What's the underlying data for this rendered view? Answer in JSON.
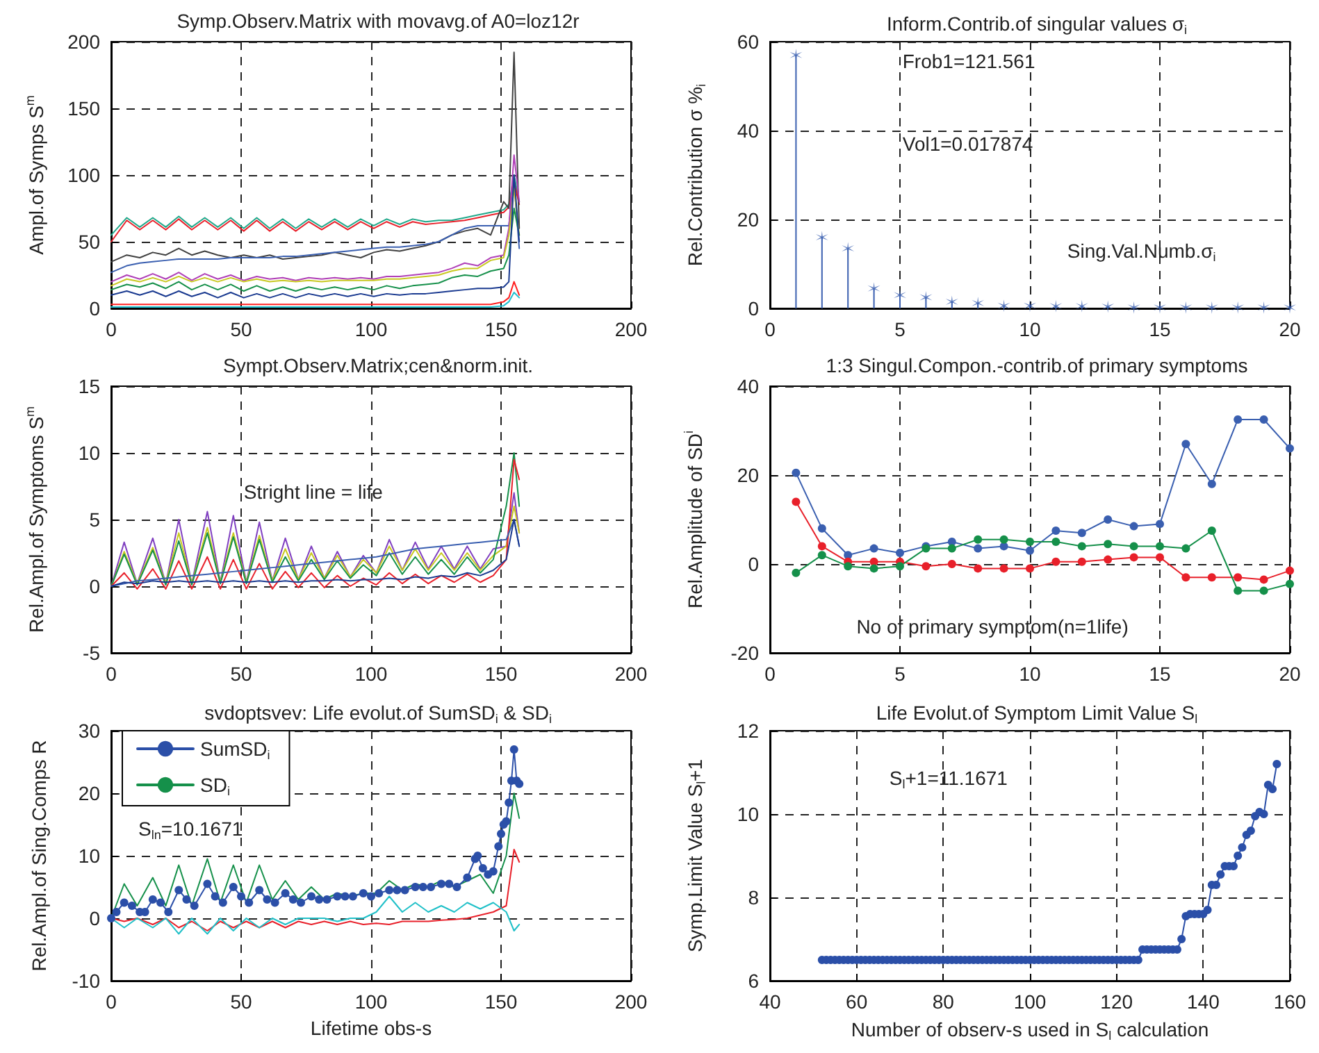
{
  "chart_data": [
    {
      "type": "line",
      "title": "Symp.Observ.Matrix with movavg.of A0=loz12r",
      "ylabel": "Ampl.of Symps S$^{m}$",
      "xlim": [
        0,
        200
      ],
      "xticks": [
        0,
        50,
        100,
        150,
        200
      ],
      "ylim": [
        0,
        200
      ],
      "yticks": [
        0,
        50,
        100,
        150,
        200
      ],
      "grid": true,
      "x": [
        0,
        6,
        11,
        16,
        21,
        26,
        31,
        36,
        41,
        46,
        51,
        56,
        61,
        66,
        71,
        76,
        81,
        86,
        91,
        96,
        101,
        106,
        111,
        116,
        121,
        126,
        131,
        136,
        141,
        146,
        151,
        153,
        155,
        157
      ],
      "series": [
        {
          "color": "#1fa88a",
          "values": [
            55,
            68,
            61,
            68,
            61,
            69,
            61,
            68,
            61,
            68,
            60,
            68,
            60,
            67,
            60,
            67,
            61,
            67,
            61,
            67,
            62,
            67,
            63,
            67,
            65,
            66,
            66,
            68,
            70,
            72,
            74,
            78,
            100,
            80
          ]
        },
        {
          "color": "#e8202a",
          "values": [
            50,
            66,
            59,
            66,
            59,
            67,
            59,
            66,
            59,
            66,
            58,
            66,
            58,
            65,
            58,
            65,
            59,
            65,
            59,
            65,
            60,
            65,
            61,
            65,
            63,
            64,
            65,
            66,
            68,
            70,
            72,
            76,
            95,
            78
          ]
        },
        {
          "color": "#404040",
          "values": [
            35,
            40,
            38,
            42,
            40,
            45,
            40,
            43,
            40,
            38,
            40,
            38,
            40,
            37,
            38,
            39,
            40,
            42,
            40,
            38,
            42,
            44,
            43,
            45,
            47,
            50,
            55,
            58,
            60,
            55,
            80,
            75,
            192,
            60
          ]
        },
        {
          "color": "#3a5fb0",
          "values": [
            27,
            32,
            34,
            35,
            36,
            37,
            37,
            37,
            37,
            38,
            38,
            38,
            38,
            39,
            39,
            40,
            41,
            42,
            43,
            44,
            45,
            46,
            46,
            47,
            48,
            50,
            55,
            60,
            62,
            62,
            62,
            62,
            95,
            45
          ]
        },
        {
          "color": "#b040b8",
          "values": [
            20,
            25,
            22,
            26,
            22,
            27,
            21,
            26,
            22,
            25,
            21,
            24,
            22,
            23,
            21,
            23,
            22,
            23,
            22,
            23,
            22,
            24,
            24,
            25,
            26,
            27,
            30,
            34,
            32,
            38,
            40,
            60,
            115,
            80
          ]
        },
        {
          "color": "#c8c820",
          "values": [
            17,
            22,
            20,
            23,
            20,
            24,
            20,
            23,
            20,
            23,
            20,
            22,
            20,
            21,
            20,
            21,
            20,
            21,
            21,
            21,
            21,
            22,
            22,
            23,
            24,
            25,
            28,
            30,
            30,
            36,
            38,
            55,
            90,
            55
          ]
        },
        {
          "color": "#15904a",
          "values": [
            14,
            18,
            16,
            19,
            15,
            20,
            14,
            18,
            14,
            18,
            13,
            17,
            13,
            16,
            13,
            16,
            14,
            16,
            14,
            16,
            14,
            17,
            15,
            17,
            18,
            19,
            23,
            25,
            24,
            28,
            30,
            40,
            75,
            55
          ]
        },
        {
          "color": "#1a3a90",
          "values": [
            10,
            13,
            10,
            13,
            9,
            13,
            9,
            12,
            8,
            12,
            8,
            11,
            8,
            11,
            8,
            11,
            9,
            11,
            9,
            11,
            9,
            11,
            10,
            11,
            11,
            12,
            13,
            14,
            15,
            15,
            16,
            20,
            100,
            50
          ]
        },
        {
          "color": "#ff2020",
          "values": [
            3,
            3,
            3,
            3,
            3,
            3,
            3,
            3,
            3,
            3,
            3,
            3,
            3,
            3,
            3,
            3,
            3,
            3,
            3,
            3,
            3,
            3,
            3,
            3,
            3,
            3,
            3,
            3,
            3,
            3,
            5,
            8,
            20,
            10
          ]
        },
        {
          "color": "#20c0d0",
          "values": [
            1,
            1,
            1,
            1,
            1,
            1,
            1,
            1,
            1,
            1,
            1,
            1,
            1,
            1,
            1,
            1,
            1,
            1,
            1,
            1,
            1,
            1,
            1,
            1,
            1,
            1,
            1,
            1,
            1,
            1,
            2,
            5,
            12,
            8
          ]
        }
      ]
    },
    {
      "type": "lollipop",
      "title": "Inform.Contrib.of singular values σ$_{i}$",
      "ylabel": "Rel.Contribution σ %$_{i}$",
      "xlim": [
        0,
        20
      ],
      "xticks": [
        0,
        5,
        10,
        15,
        20
      ],
      "ylim": [
        0,
        60
      ],
      "yticks": [
        0,
        20,
        40,
        60
      ],
      "grid": true,
      "marker": "cross",
      "annotations": [
        "Frob1=121.561",
        "Vol1=0.017874",
        "Sing.Val.Numb.σ$_{i}$"
      ],
      "x": [
        1,
        2,
        3,
        4,
        5,
        6,
        7,
        8,
        9,
        10,
        11,
        12,
        13,
        14,
        15,
        16,
        17,
        18,
        19,
        20
      ],
      "series": [
        {
          "color": "#3a5fb0",
          "values": [
            57,
            16,
            13.5,
            4.5,
            3,
            2.5,
            1.5,
            1.2,
            0.6,
            0.6,
            0.5,
            0.5,
            0.4,
            0.2,
            0.2,
            0.2,
            0.2,
            0.2,
            0.2,
            0.2
          ]
        }
      ]
    },
    {
      "type": "line",
      "title": "Sympt.Observ.Matrix;cen&norm.init.",
      "ylabel": "Rel.Ampl.of Symptoms S$^{m}$",
      "xlim": [
        0,
        200
      ],
      "xticks": [
        0,
        50,
        100,
        150,
        200
      ],
      "ylim": [
        -5,
        15
      ],
      "yticks": [
        -5,
        0,
        5,
        10,
        15
      ],
      "grid": true,
      "annotations": [
        "Stright line = life"
      ],
      "x": [
        0,
        5,
        10,
        16,
        21,
        26,
        31,
        37,
        42,
        47,
        52,
        57,
        62,
        67,
        72,
        77,
        82,
        87,
        92,
        97,
        102,
        107,
        112,
        117,
        122,
        127,
        132,
        137,
        142,
        147,
        152,
        155,
        157
      ],
      "series": [
        {
          "color": "#8040c0",
          "values": [
            0,
            3.3,
            0.2,
            3.6,
            0.2,
            5.0,
            0.2,
            5.6,
            0.3,
            5.3,
            0.3,
            4.8,
            0.4,
            3.6,
            0.5,
            3.0,
            0.6,
            2.6,
            0.7,
            2.3,
            1.0,
            3.5,
            1.2,
            3.3,
            1.3,
            3.0,
            1.3,
            3.0,
            1.3,
            2.8,
            3,
            7,
            4
          ]
        },
        {
          "color": "#c8c820",
          "values": [
            0,
            2.6,
            0.2,
            2.9,
            0.2,
            4.0,
            0.2,
            4.4,
            0.3,
            4.0,
            0.3,
            3.8,
            0.4,
            2.8,
            0.5,
            2.5,
            0.6,
            2.3,
            0.7,
            2.0,
            1.0,
            3.0,
            1.2,
            2.8,
            1.2,
            2.5,
            1.2,
            2.5,
            1.2,
            2.3,
            3,
            6,
            4
          ]
        },
        {
          "color": "#15904a",
          "values": [
            0,
            2.4,
            0.1,
            2.7,
            0.1,
            3.4,
            0.1,
            4.0,
            0.2,
            3.7,
            0.2,
            3.5,
            0.3,
            2.2,
            0.4,
            2.0,
            0.5,
            1.9,
            0.6,
            1.6,
            0.8,
            2.5,
            0.9,
            2.2,
            0.9,
            2.0,
            0.9,
            2.2,
            1.0,
            2.0,
            6,
            10,
            6
          ]
        },
        {
          "color": "#e8202a",
          "values": [
            0,
            1.0,
            -0.2,
            1.3,
            -0.2,
            1.9,
            -0.2,
            2.2,
            -0.2,
            2.0,
            -0.2,
            1.7,
            -0.2,
            1.1,
            -0.1,
            1.0,
            -0.1,
            0.8,
            0,
            0.6,
            0.1,
            1.0,
            0.2,
            0.9,
            0.2,
            0.8,
            0.3,
            0.9,
            0.3,
            0.8,
            2,
            9.5,
            8
          ]
        },
        {
          "color": "#3a5fb0",
          "values": [
            0,
            0.2,
            0.4,
            0.5,
            0.6,
            0.7,
            0.8,
            0.9,
            1.0,
            1.1,
            1.2,
            1.3,
            1.4,
            1.5,
            1.6,
            1.7,
            1.8,
            1.9,
            2.0,
            2.1,
            2.2,
            2.4,
            2.6,
            2.8,
            2.9,
            3.0,
            3.1,
            3.2,
            3.3,
            3.4,
            3.5,
            5,
            3
          ]
        },
        {
          "color": "#1a3a90",
          "values": [
            0,
            0.3,
            0.2,
            0.4,
            0.3,
            0.4,
            0.3,
            0.4,
            0.3,
            0.4,
            0.3,
            0.4,
            0.3,
            0.4,
            0.3,
            0.4,
            0.4,
            0.5,
            0.4,
            0.5,
            0.5,
            0.6,
            0.5,
            0.7,
            0.6,
            0.8,
            0.7,
            1.0,
            0.8,
            1.2,
            2,
            5,
            3
          ]
        }
      ]
    },
    {
      "type": "line",
      "title": "1:3 Singul.Compon.-contrib.of primary symptoms",
      "ylabel": "Rel.Amplitude of SD$^{i}$",
      "xlim": [
        0,
        20
      ],
      "xticks": [
        0,
        5,
        10,
        15,
        20
      ],
      "ylim": [
        -20,
        40
      ],
      "yticks": [
        -20,
        0,
        20,
        40
      ],
      "grid": true,
      "marker": "circle",
      "annotations": [
        "No of primary symptom(n=1life)"
      ],
      "x": [
        1,
        2,
        3,
        4,
        5,
        6,
        7,
        8,
        9,
        10,
        11,
        12,
        13,
        14,
        15,
        16,
        17,
        18,
        19,
        20
      ],
      "series": [
        {
          "color": "#3a5fb0",
          "values": [
            20.5,
            8,
            2,
            3.5,
            2.5,
            4,
            5,
            3.5,
            4,
            3,
            7.5,
            7,
            10,
            8.5,
            9,
            27,
            18,
            32.5,
            32.5,
            26
          ]
        },
        {
          "color": "#e8202a",
          "values": [
            14,
            4,
            0.5,
            0.5,
            0.5,
            -0.5,
            0,
            -1,
            -1,
            -1,
            0.5,
            0.5,
            1,
            1.5,
            1.5,
            -3,
            -3,
            -3,
            -3.5,
            -1.5
          ]
        },
        {
          "color": "#15904a",
          "values": [
            -2,
            2,
            -0.5,
            -1,
            -0.5,
            3.5,
            3.5,
            5.5,
            5.5,
            5,
            5,
            4,
            4.5,
            4,
            4,
            3.5,
            7.5,
            -6,
            -6,
            -4.5
          ]
        }
      ]
    },
    {
      "type": "line",
      "title": "svdoptsvev: Life evolut.of SumSD$_{i}$ & SD$_{i}$",
      "xlabel": "Lifetime obs-s",
      "ylabel": "Rel.Ampl.of Sing.Comps R",
      "xlim": [
        0,
        200
      ],
      "xticks": [
        0,
        50,
        100,
        150,
        200
      ],
      "ylim": [
        -10,
        30
      ],
      "yticks": [
        -10,
        0,
        10,
        20,
        30
      ],
      "grid": true,
      "legend": "top left",
      "marker": "none",
      "annotations": [
        "S$_{ln}$=10.1671"
      ],
      "x": [
        0,
        5,
        10,
        16,
        21,
        26,
        31,
        37,
        42,
        47,
        52,
        57,
        62,
        67,
        72,
        77,
        82,
        87,
        92,
        97,
        102,
        107,
        112,
        117,
        122,
        127,
        132,
        137,
        142,
        147,
        152,
        155,
        157
      ],
      "series": [
        {
          "name": "SumSD$_{i}$",
          "color": "#2b4fa8",
          "marker": "circle",
          "x": [
            0,
            2,
            5,
            8,
            11,
            13,
            16,
            19,
            22,
            26,
            29,
            32,
            37,
            40,
            43,
            47,
            50,
            53,
            57,
            60,
            63,
            67,
            70,
            73,
            77,
            80,
            83,
            87,
            90,
            93,
            97,
            100,
            103,
            107,
            110,
            113,
            117,
            120,
            123,
            127,
            130,
            133,
            137,
            140,
            141,
            143,
            145,
            147,
            149,
            150,
            151,
            152,
            153,
            154,
            155,
            156,
            157
          ],
          "values": [
            0,
            1,
            2.5,
            2,
            1,
            1,
            3,
            2.5,
            1,
            4.5,
            3,
            2,
            5.5,
            3.5,
            2.5,
            5,
            3.5,
            2.5,
            4.5,
            3,
            2.5,
            4,
            3,
            2.5,
            3.5,
            3,
            3,
            3.5,
            3.5,
            3.5,
            4,
            3.5,
            4,
            4.5,
            4.5,
            4.5,
            5,
            5,
            5,
            5.5,
            5.5,
            5,
            6.5,
            9.5,
            10,
            8,
            7,
            7.5,
            11.5,
            13.5,
            15,
            15.5,
            18.5,
            22,
            27,
            22,
            21.5
          ]
        },
        {
          "name": "SD$_{i}$",
          "color": "#15904a",
          "values": [
            0,
            5.5,
            2,
            6.5,
            2,
            8.5,
            2,
            9.5,
            2.5,
            8.5,
            2.5,
            8.5,
            3,
            6,
            3,
            5,
            3,
            4,
            3.5,
            4,
            4,
            6,
            4.5,
            5.5,
            5,
            6,
            5,
            6,
            7,
            4,
            10,
            20,
            16
          ]
        },
        {
          "color": "#e8202a",
          "values": [
            0,
            -0.5,
            0,
            -1,
            0,
            -1.5,
            -0.5,
            -2,
            -0.5,
            -1.5,
            -0.5,
            -1.5,
            -0.5,
            -1.5,
            -0.5,
            -1,
            -0.5,
            -1,
            -0.5,
            -1,
            -0.8,
            -1,
            -0.5,
            -0.5,
            -0.5,
            -0.3,
            -0.2,
            0,
            0.5,
            1,
            2,
            11,
            9
          ]
        },
        {
          "color": "#20c0c8",
          "values": [
            0,
            -1.5,
            0,
            -1.5,
            0,
            -2.5,
            0,
            -2.5,
            0,
            -2,
            0,
            -1.5,
            0,
            -1,
            0,
            0,
            0,
            -0.5,
            0,
            0,
            1,
            3.5,
            1,
            2.5,
            1,
            2,
            1,
            2.5,
            1.5,
            2.5,
            1,
            -2,
            -1
          ]
        }
      ]
    },
    {
      "type": "line",
      "title": "Life Evolut.of Symptom Limit Value S$_{l}$",
      "xlabel": "Number of observ-s used in S$_{l}$ calculation",
      "ylabel": "Symp.Limit Value S$_{l}$+1",
      "xlim": [
        40,
        160
      ],
      "xticks": [
        40,
        60,
        80,
        100,
        120,
        140,
        160
      ],
      "ylim": [
        6,
        12
      ],
      "yticks": [
        6,
        8,
        10,
        12
      ],
      "grid": true,
      "marker": "circle",
      "annotations": [
        "S$_{l}$+1=11.1671"
      ],
      "x": [
        52,
        53,
        54,
        55,
        56,
        57,
        58,
        59,
        60,
        61,
        62,
        63,
        64,
        65,
        66,
        67,
        68,
        69,
        70,
        71,
        72,
        73,
        74,
        75,
        76,
        77,
        78,
        79,
        80,
        81,
        82,
        83,
        84,
        85,
        86,
        87,
        88,
        89,
        90,
        91,
        92,
        93,
        94,
        95,
        96,
        97,
        98,
        99,
        100,
        101,
        102,
        103,
        104,
        105,
        106,
        107,
        108,
        109,
        110,
        111,
        112,
        113,
        114,
        115,
        116,
        117,
        118,
        119,
        120,
        121,
        122,
        123,
        124,
        125,
        126,
        127,
        128,
        129,
        130,
        131,
        132,
        133,
        134,
        135,
        136,
        137,
        138,
        139,
        140,
        141,
        142,
        143,
        144,
        145,
        146,
        147,
        148,
        149,
        150,
        151,
        152,
        153,
        154,
        155,
        156,
        157
      ],
      "series": [
        {
          "color": "#2b4fa8",
          "values": [
            6.5,
            6.5,
            6.5,
            6.5,
            6.5,
            6.5,
            6.5,
            6.5,
            6.5,
            6.5,
            6.5,
            6.5,
            6.5,
            6.5,
            6.5,
            6.5,
            6.5,
            6.5,
            6.5,
            6.5,
            6.5,
            6.5,
            6.5,
            6.5,
            6.5,
            6.5,
            6.5,
            6.5,
            6.5,
            6.5,
            6.5,
            6.5,
            6.5,
            6.5,
            6.5,
            6.5,
            6.5,
            6.5,
            6.5,
            6.5,
            6.5,
            6.5,
            6.5,
            6.5,
            6.5,
            6.5,
            6.5,
            6.5,
            6.5,
            6.5,
            6.5,
            6.5,
            6.5,
            6.5,
            6.5,
            6.5,
            6.5,
            6.5,
            6.5,
            6.5,
            6.5,
            6.5,
            6.5,
            6.5,
            6.5,
            6.5,
            6.5,
            6.5,
            6.5,
            6.5,
            6.5,
            6.5,
            6.5,
            6.5,
            6.75,
            6.75,
            6.75,
            6.75,
            6.75,
            6.75,
            6.75,
            6.75,
            6.75,
            7.0,
            7.55,
            7.6,
            7.6,
            7.6,
            7.6,
            7.7,
            8.3,
            8.3,
            8.55,
            8.75,
            8.75,
            8.75,
            9.0,
            9.2,
            9.5,
            9.6,
            9.95,
            10.05,
            10.0,
            10.7,
            10.6,
            11.2
          ]
        }
      ]
    }
  ]
}
